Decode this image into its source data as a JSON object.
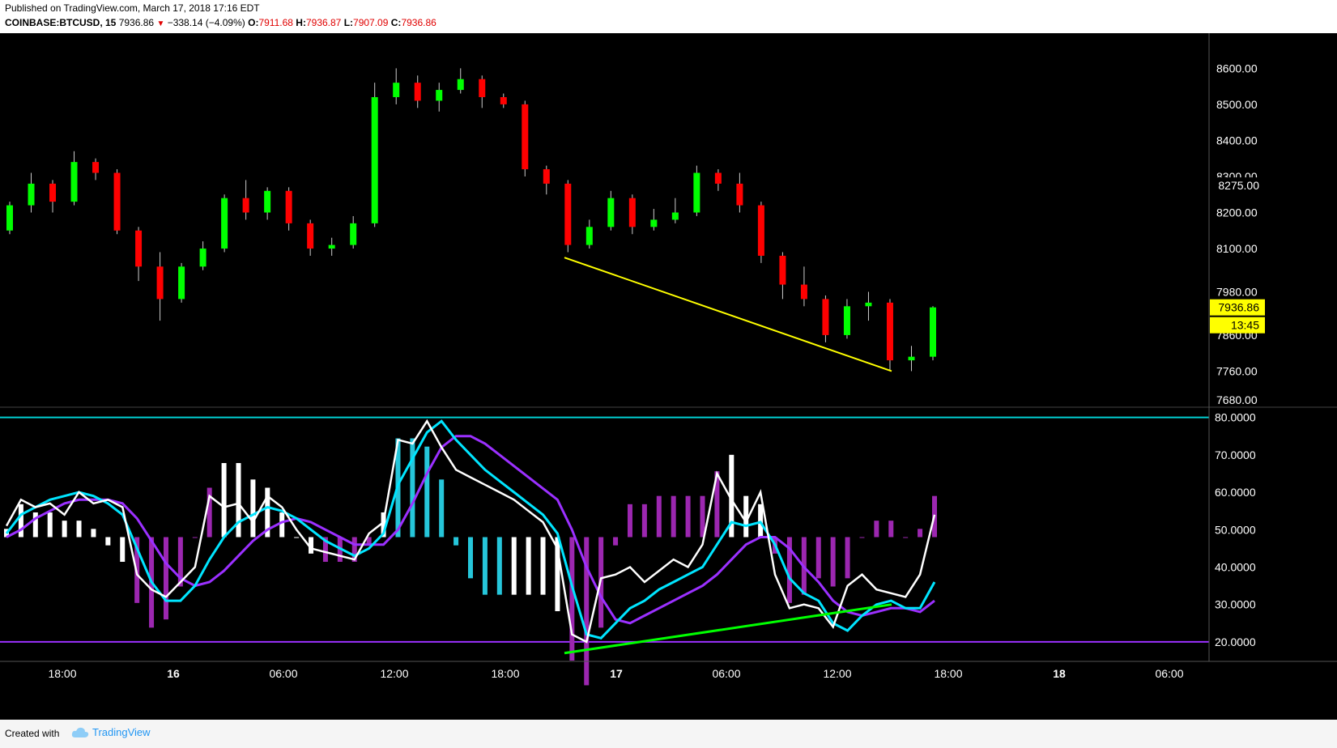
{
  "header": {
    "published": "Published on TradingView.com, March 17, 2018 17:16 EDT",
    "symbol": "COINBASE:BTCUSD, 15",
    "last": "7936.86",
    "change": "−338.14 (−4.09%)",
    "o_label": "O:",
    "o": "7911.68",
    "h_label": "H:",
    "h": "7936.87",
    "l_label": "L:",
    "l": "7907.09",
    "c_label": "C:",
    "c": "7936.86"
  },
  "footer": {
    "created": "Created with",
    "brand": "TradingView"
  },
  "colors": {
    "up": "#00ff00",
    "down": "#ff0000",
    "trend": "#ffff00",
    "rsi": "#ffffff",
    "fast": "#00e5ff",
    "slow": "#9b30ff",
    "hist_pos": "#ffffff",
    "hist_neg": "#9c27b0",
    "hist_pos_hi": "#26c6da",
    "upper_line": "#00ced1",
    "lower_line": "#9b30ff",
    "divergence": "#00ff00"
  },
  "chart_data": [
    {
      "type": "candlestick",
      "title": "",
      "x_ticks": [
        "18:00",
        "16",
        "06:00",
        "12:00",
        "18:00",
        "17",
        "06:00",
        "12:00",
        "18:00",
        "18",
        "06:00"
      ],
      "y_ticks": [
        "8600.00",
        "8500.00",
        "8400.00",
        "8300.00",
        "8200.00",
        "8100.00",
        "7980.00",
        "7860.00",
        "7760.00",
        "7680.00"
      ],
      "ylim": [
        7660,
        8630
      ],
      "price_label": "7936.86",
      "countdown_label": "13:45",
      "high_label": "8275.00",
      "trendline": {
        "from": {
          "time": "17 00:00",
          "price": 8075
        },
        "to": {
          "time": "17 14:45",
          "price": 7760
        }
      },
      "ohlc_sample": [
        [
          8150,
          8230,
          8140,
          8220
        ],
        [
          8220,
          8310,
          8200,
          8280
        ],
        [
          8280,
          8290,
          8200,
          8230
        ],
        [
          8230,
          8370,
          8220,
          8340
        ],
        [
          8340,
          8350,
          8290,
          8310
        ],
        [
          8310,
          8320,
          8140,
          8150
        ],
        [
          8150,
          8160,
          8010,
          8050
        ],
        [
          8050,
          8090,
          7900,
          7960
        ],
        [
          7960,
          8060,
          7950,
          8050
        ],
        [
          8050,
          8120,
          8040,
          8100
        ],
        [
          8100,
          8250,
          8090,
          8240
        ],
        [
          8240,
          8290,
          8180,
          8200
        ],
        [
          8200,
          8270,
          8180,
          8260
        ],
        [
          8260,
          8270,
          8150,
          8170
        ],
        [
          8170,
          8180,
          8080,
          8100
        ],
        [
          8100,
          8130,
          8080,
          8110
        ],
        [
          8110,
          8190,
          8100,
          8170
        ],
        [
          8170,
          8560,
          8160,
          8520
        ],
        [
          8520,
          8600,
          8500,
          8560
        ],
        [
          8560,
          8580,
          8490,
          8510
        ],
        [
          8510,
          8560,
          8480,
          8540
        ],
        [
          8540,
          8600,
          8530,
          8570
        ],
        [
          8570,
          8580,
          8490,
          8520
        ],
        [
          8520,
          8530,
          8490,
          8500
        ],
        [
          8500,
          8510,
          8300,
          8320
        ],
        [
          8320,
          8330,
          8250,
          8280
        ],
        [
          8280,
          8290,
          8090,
          8110
        ],
        [
          8110,
          8180,
          8100,
          8160
        ],
        [
          8160,
          8260,
          8150,
          8240
        ],
        [
          8240,
          8250,
          8140,
          8160
        ],
        [
          8160,
          8210,
          8150,
          8180
        ],
        [
          8180,
          8240,
          8170,
          8200
        ],
        [
          8200,
          8330,
          8190,
          8310
        ],
        [
          8310,
          8320,
          8260,
          8280
        ],
        [
          8280,
          8310,
          8200,
          8220
        ],
        [
          8220,
          8230,
          8060,
          8080
        ],
        [
          8080,
          8090,
          7960,
          8000
        ],
        [
          8000,
          8050,
          7940,
          7960
        ],
        [
          7960,
          7970,
          7840,
          7860
        ],
        [
          7860,
          7960,
          7850,
          7940
        ],
        [
          7940,
          7980,
          7900,
          7950
        ],
        [
          7950,
          7960,
          7760,
          7790
        ],
        [
          7790,
          7830,
          7760,
          7800
        ],
        [
          7800,
          7940,
          7790,
          7936.86
        ]
      ]
    },
    {
      "type": "line",
      "title": "",
      "y_ticks": [
        "80.0000",
        "70.0000",
        "60.0000",
        "50.0000",
        "40.0000",
        "30.0000",
        "20.0000"
      ],
      "ylim": [
        15,
        81
      ],
      "levels": [
        80,
        20
      ],
      "baseline": 48,
      "divergence_line": {
        "from": {
          "time": "17 00:00",
          "value": 17
        },
        "to": {
          "time": "17 14:45",
          "value": 30
        }
      },
      "series": [
        {
          "values": [
            51,
            58,
            56,
            57,
            54,
            60,
            57,
            58,
            56,
            38,
            34,
            32,
            36,
            40,
            59,
            56,
            57,
            52,
            59,
            56,
            50,
            45,
            44,
            43,
            42,
            49,
            52,
            74,
            73,
            79,
            72,
            66,
            64,
            62,
            60,
            58,
            55,
            52,
            45,
            22,
            20,
            37,
            38,
            40,
            36,
            39,
            42,
            40,
            46,
            65,
            58,
            52,
            60,
            38,
            29,
            30,
            29,
            24,
            35,
            38,
            34,
            33,
            32,
            38,
            54
          ]
        },
        {
          "values": [
            49,
            54,
            56,
            58,
            59,
            60,
            59,
            57,
            54,
            45,
            36,
            31,
            31,
            35,
            42,
            48,
            52,
            54,
            56,
            55,
            53,
            50,
            47,
            45,
            43,
            45,
            49,
            62,
            69,
            76,
            79,
            74,
            70,
            66,
            63,
            60,
            57,
            54,
            49,
            35,
            22,
            21,
            25,
            29,
            31,
            34,
            36,
            38,
            40,
            46,
            52,
            51,
            52,
            46,
            37,
            33,
            31,
            25,
            23,
            27,
            30,
            31,
            29,
            29,
            36
          ]
        },
        {
          "values": [
            48,
            50,
            53,
            55,
            57,
            58,
            58,
            58,
            57,
            53,
            47,
            41,
            37,
            35,
            36,
            39,
            43,
            47,
            50,
            52,
            53,
            52,
            50,
            48,
            46,
            46,
            46,
            50,
            57,
            65,
            72,
            75,
            75,
            73,
            70,
            67,
            64,
            61,
            58,
            50,
            40,
            32,
            26,
            25,
            27,
            29,
            31,
            33,
            35,
            38,
            42,
            46,
            48,
            48,
            45,
            40,
            36,
            31,
            28,
            27,
            28,
            29,
            29,
            28,
            31
          ]
        }
      ]
    }
  ]
}
